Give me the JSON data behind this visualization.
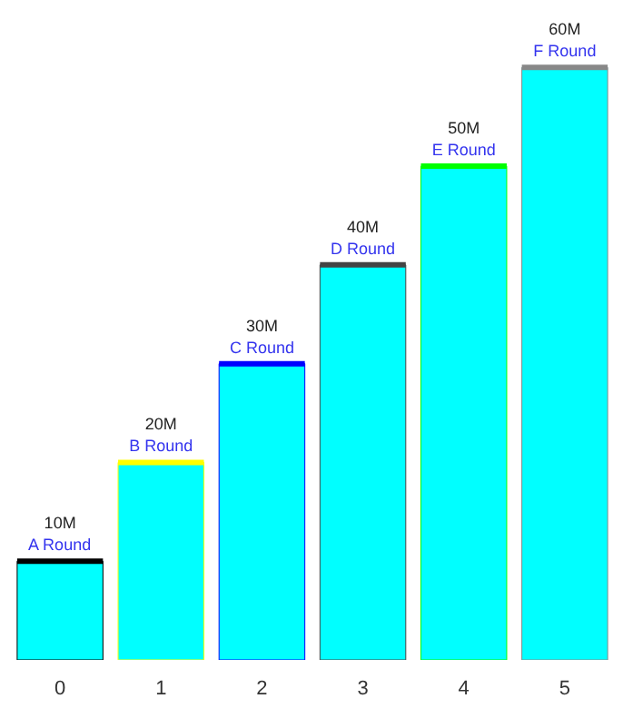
{
  "chart_data": {
    "type": "bar",
    "categories": [
      "0",
      "1",
      "2",
      "3",
      "4",
      "5"
    ],
    "series": [
      {
        "color": "#00ffff",
        "values": [
          10,
          20,
          30,
          40,
          50,
          60
        ],
        "colors": [
          "#000000",
          "#ffff00",
          "#0000ff",
          "#444444",
          "#00ff00",
          "#888888"
        ],
        "value_labels": [
          "10M",
          "20M",
          "30M",
          "40M",
          "50M",
          "60M"
        ]
      }
    ],
    "annotations": [
      {
        "text": "A Round",
        "x": "0",
        "y": 10
      },
      {
        "text": "B Round",
        "x": "1",
        "y": 20
      },
      {
        "text": "C Round",
        "x": "2",
        "y": 30
      },
      {
        "text": "D Round",
        "x": "3",
        "y": 40
      },
      {
        "text": "E Round",
        "x": "4",
        "y": 50
      },
      {
        "text": "F Round",
        "x": "5",
        "y": 60
      }
    ],
    "grid": false
  }
}
